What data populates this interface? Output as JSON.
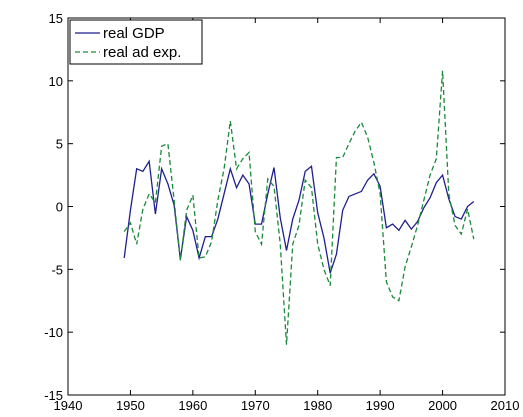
{
  "chart_data": {
    "type": "line",
    "x": [
      1949,
      1950,
      1951,
      1952,
      1953,
      1954,
      1955,
      1956,
      1957,
      1958,
      1959,
      1960,
      1961,
      1962,
      1963,
      1964,
      1965,
      1966,
      1967,
      1968,
      1969,
      1970,
      1971,
      1972,
      1973,
      1974,
      1975,
      1976,
      1977,
      1978,
      1979,
      1980,
      1981,
      1982,
      1983,
      1984,
      1985,
      1986,
      1987,
      1988,
      1989,
      1990,
      1991,
      1992,
      1993,
      1994,
      1995,
      1996,
      1997,
      1998,
      1999,
      2000,
      2001,
      2002,
      2003,
      2004,
      2005
    ],
    "series": [
      {
        "name": "real GDP",
        "color": "#1f1f8f",
        "dash": false,
        "values": [
          -4.1,
          -0.3,
          3.0,
          2.8,
          3.6,
          -0.6,
          3.0,
          1.8,
          0.1,
          -4.2,
          -0.8,
          -1.9,
          -4.1,
          -2.4,
          -2.4,
          -1.0,
          1.0,
          3.0,
          1.5,
          2.5,
          1.8,
          -1.4,
          -1.4,
          1.0,
          3.1,
          -0.9,
          -3.5,
          -1.0,
          0.5,
          2.8,
          3.2,
          -0.5,
          -2.5,
          -5.3,
          -3.8,
          -0.3,
          0.8,
          1.0,
          1.2,
          2.1,
          2.6,
          1.6,
          -1.7,
          -1.4,
          -1.9,
          -1.1,
          -1.8,
          -1.2,
          -0.1,
          0.7,
          1.9,
          2.5,
          0.6,
          -0.8,
          -1.0,
          0.0,
          0.4
        ]
      },
      {
        "name": "real ad exp.",
        "color": "#1a8a3a",
        "dash": true,
        "values": [
          -2.0,
          -1.3,
          -3.0,
          -0.2,
          1.0,
          0.3,
          4.8,
          5.0,
          0.5,
          -4.3,
          -0.3,
          0.9,
          -4.1,
          -4.0,
          -2.8,
          0.5,
          3.0,
          6.8,
          3.0,
          3.8,
          4.3,
          -2.0,
          -3.0,
          2.2,
          1.6,
          -3.0,
          -11.0,
          -3.0,
          -1.5,
          2.1,
          1.5,
          -3.0,
          -5.0,
          -6.3,
          3.9,
          3.9,
          5.0,
          6.0,
          6.7,
          5.5,
          3.5,
          1.0,
          -6.0,
          -7.2,
          -7.5,
          -4.8,
          -3.2,
          -1.5,
          0.5,
          2.5,
          3.8,
          10.8,
          1.0,
          -1.5,
          -2.2,
          -0.2,
          -2.6
        ]
      }
    ],
    "xlim": [
      1940,
      2010
    ],
    "xticks": [
      1940,
      1950,
      1960,
      1970,
      1980,
      1990,
      2000,
      2010
    ],
    "ylim": [
      -15,
      15
    ],
    "yticks": [
      -15,
      -10,
      -5,
      0,
      5,
      10,
      15
    ],
    "grid": false,
    "legend": "upper-left"
  }
}
